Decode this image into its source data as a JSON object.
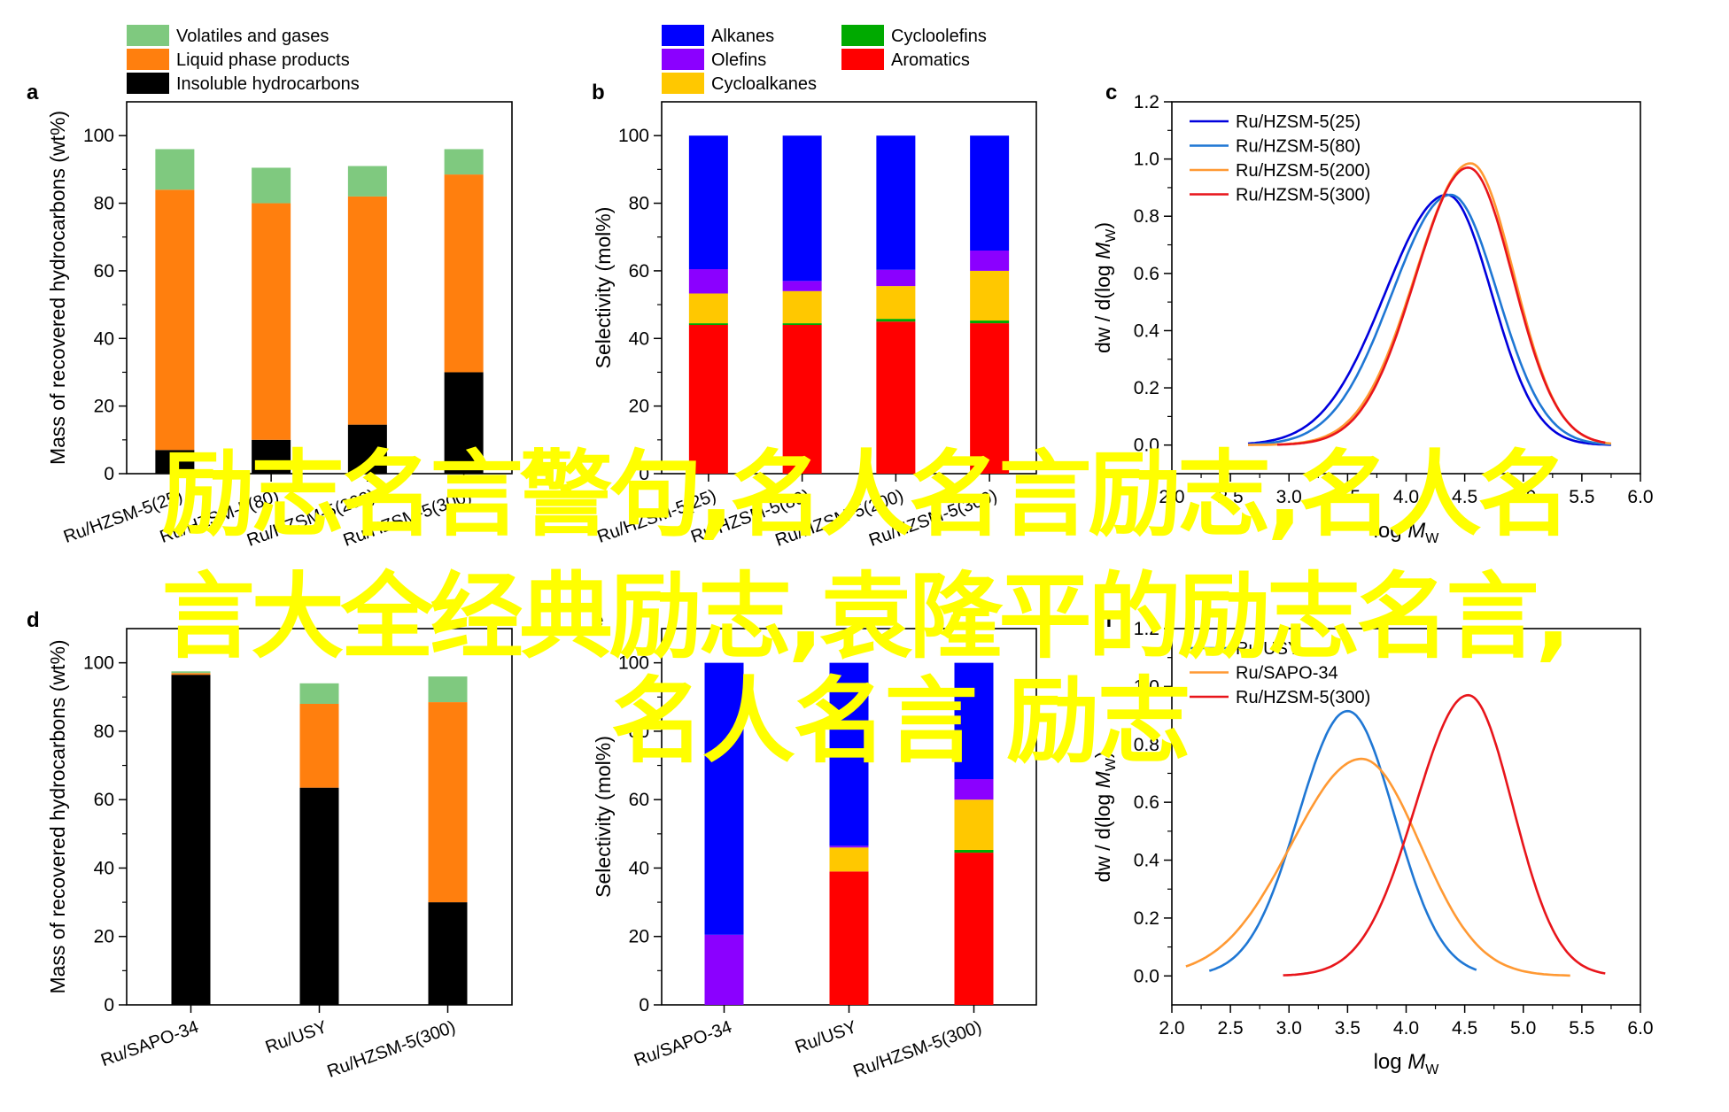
{
  "overlay_text": {
    "line1": "励志名言警句,名人名言励志,名人名",
    "line2": "言大全经典励志,袁隆平的励志名言,",
    "line3": "名人名言 励志",
    "color": "#ffff00"
  },
  "colors": {
    "volatiles": "#7fc97f",
    "liquid": "#ff7f0e",
    "insoluble": "#000000",
    "alkanes": "#0000ff",
    "olefins": "#8b00ff",
    "cycloalkanes": "#ffc800",
    "cycloolefins": "#00aa00",
    "aromatics": "#ff0000"
  },
  "chart_data": [
    {
      "panel": "a",
      "type": "bar",
      "stacked": true,
      "ylabel": "Mass of recovered hydrocarbons (wt%)",
      "ylim": [
        0,
        110
      ],
      "yticks": [
        0,
        20,
        40,
        60,
        80,
        100
      ],
      "categories": [
        "Ru/HZSM-5(25)",
        "Ru/HZSM-5(80)",
        "Ru/HZSM-5(200)",
        "Ru/HZSM-5(300)"
      ],
      "series": [
        {
          "name": "Insoluble hydrocarbons",
          "color": "#000000",
          "values": [
            7,
            10,
            14.5,
            30
          ]
        },
        {
          "name": "Liquid phase products",
          "color": "#ff7f0e",
          "values": [
            77,
            70,
            67.5,
            58.5
          ]
        },
        {
          "name": "Volatiles and gases",
          "color": "#7fc97f",
          "values": [
            12,
            10.5,
            9,
            7.5
          ]
        }
      ],
      "legend_order": [
        "Volatiles and gases",
        "Liquid phase products",
        "Insoluble hydrocarbons"
      ],
      "legend": "top"
    },
    {
      "panel": "b",
      "type": "bar",
      "stacked": true,
      "ylabel": "Selectivity (mol%)",
      "ylim": [
        0,
        110
      ],
      "yticks": [
        0,
        20,
        40,
        60,
        80,
        100
      ],
      "categories": [
        "Ru/HZSM-5(25)",
        "Ru/HZSM-5(80)",
        "Ru/HZSM-5(200)",
        "Ru/HZSM-5(300)"
      ],
      "series": [
        {
          "name": "Aromatics",
          "color": "#ff0000",
          "values": [
            44,
            44,
            45,
            44.5
          ]
        },
        {
          "name": "Cycloolefins",
          "color": "#00aa00",
          "values": [
            0.5,
            0.5,
            0.8,
            0.8
          ]
        },
        {
          "name": "Cycloalkanes",
          "color": "#ffc800",
          "values": [
            8.8,
            9.5,
            9.7,
            14.7
          ]
        },
        {
          "name": "Olefins",
          "color": "#8b00ff",
          "values": [
            7.2,
            3,
            4.8,
            6
          ]
        },
        {
          "name": "Alkanes",
          "color": "#0000ff",
          "values": [
            39.5,
            43,
            39.7,
            34
          ]
        }
      ],
      "legend_order": [
        "Alkanes",
        "Olefins",
        "Cycloalkanes",
        "Cycloolefins",
        "Aromatics"
      ],
      "legend": "top"
    },
    {
      "panel": "c",
      "type": "line",
      "xlabel": "log M",
      "xlabel_sub": "W",
      "ylabel": "dw / d(log M",
      "ylabel_sub": "W",
      "ylabel_close": ")",
      "xlim": [
        2.0,
        6.0
      ],
      "ylim": [
        -0.1,
        1.2
      ],
      "xticks": [
        2.0,
        2.5,
        3.0,
        3.5,
        4.0,
        4.5,
        5.0,
        5.5,
        6.0
      ],
      "yticks": [
        0.0,
        0.2,
        0.4,
        0.6,
        0.8,
        1.0,
        1.2
      ],
      "series": [
        {
          "name": "Ru/HZSM-5(25)",
          "color": "#0000dd",
          "peak": 0.875,
          "mu": 4.35,
          "sigL": 0.53,
          "sigR": 0.38,
          "x0": 2.65,
          "x1": 5.75
        },
        {
          "name": "Ru/HZSM-5(80)",
          "color": "#1f77d4",
          "peak": 0.875,
          "mu": 4.38,
          "sigL": 0.5,
          "sigR": 0.4,
          "x0": 2.65,
          "x1": 5.75
        },
        {
          "name": "Ru/HZSM-5(200)",
          "color": "#ff9933",
          "peak": 0.985,
          "mu": 4.55,
          "sigL": 0.47,
          "sigR": 0.37,
          "x0": 2.65,
          "x1": 5.75
        },
        {
          "name": "Ru/HZSM-5(300)",
          "color": "#e8151b",
          "peak": 0.97,
          "mu": 4.53,
          "sigL": 0.45,
          "sigR": 0.38,
          "x0": 2.9,
          "x1": 5.7
        }
      ],
      "legend": "top-left"
    },
    {
      "panel": "d",
      "type": "bar",
      "stacked": true,
      "ylabel": "Mass of recovered hydrocarbons (wt%)",
      "ylim": [
        0,
        110
      ],
      "yticks": [
        0,
        20,
        40,
        60,
        80,
        100
      ],
      "categories": [
        "Ru/SAPO-34",
        "Ru/USY",
        "Ru/HZSM-5(300)"
      ],
      "series": [
        {
          "name": "Insoluble hydrocarbons",
          "color": "#000000",
          "values": [
            96.5,
            63.5,
            30
          ]
        },
        {
          "name": "Liquid phase products",
          "color": "#ff7f0e",
          "values": [
            0.5,
            24.5,
            58.5
          ]
        },
        {
          "name": "Volatiles and gases",
          "color": "#7fc97f",
          "values": [
            0.5,
            6,
            7.5
          ]
        }
      ]
    },
    {
      "panel": "e",
      "type": "bar",
      "stacked": true,
      "ylabel": "Selectivity (mol%)",
      "ylim": [
        0,
        110
      ],
      "yticks": [
        0,
        20,
        40,
        60,
        80,
        100
      ],
      "categories": [
        "Ru/SAPO-34",
        "Ru/USY",
        "Ru/HZSM-5(300)"
      ],
      "series": [
        {
          "name": "Aromatics",
          "color": "#ff0000",
          "values": [
            0,
            39,
            44.5
          ]
        },
        {
          "name": "Cycloolefins",
          "color": "#00aa00",
          "values": [
            0,
            0,
            0.8
          ]
        },
        {
          "name": "Cycloalkanes",
          "color": "#ffc800",
          "values": [
            0,
            7,
            14.7
          ]
        },
        {
          "name": "Olefins",
          "color": "#8b00ff",
          "values": [
            20.5,
            0.5,
            6
          ]
        },
        {
          "name": "Alkanes",
          "color": "#0000ff",
          "values": [
            79.5,
            53.5,
            34
          ]
        }
      ]
    },
    {
      "panel": "f",
      "type": "line",
      "xlabel": "log M",
      "xlabel_sub": "W",
      "ylabel": "dw / d(log M",
      "ylabel_sub": "W",
      "ylabel_close": ")",
      "xlim": [
        2.0,
        6.0
      ],
      "ylim": [
        -0.1,
        1.2
      ],
      "xticks": [
        2.0,
        2.5,
        3.0,
        3.5,
        4.0,
        4.5,
        5.0,
        5.5,
        6.0
      ],
      "yticks": [
        0.0,
        0.2,
        0.4,
        0.6,
        0.8,
        1.0,
        1.2
      ],
      "series": [
        {
          "name": "Ru/USY",
          "color": "#1f77d4",
          "peak": 0.915,
          "mu": 3.5,
          "sigL": 0.42,
          "sigR": 0.4,
          "x0": 2.32,
          "x1": 4.6
        },
        {
          "name": "Ru/SAPO-34",
          "color": "#ff9933",
          "peak": 0.75,
          "mu": 3.62,
          "sigL": 0.6,
          "sigR": 0.5,
          "x0": 2.12,
          "x1": 5.4
        },
        {
          "name": "Ru/HZSM-5(300)",
          "color": "#e8151b",
          "peak": 0.97,
          "mu": 4.53,
          "sigL": 0.45,
          "sigR": 0.38,
          "x0": 2.95,
          "x1": 5.7
        }
      ],
      "legend": "top-left"
    }
  ]
}
